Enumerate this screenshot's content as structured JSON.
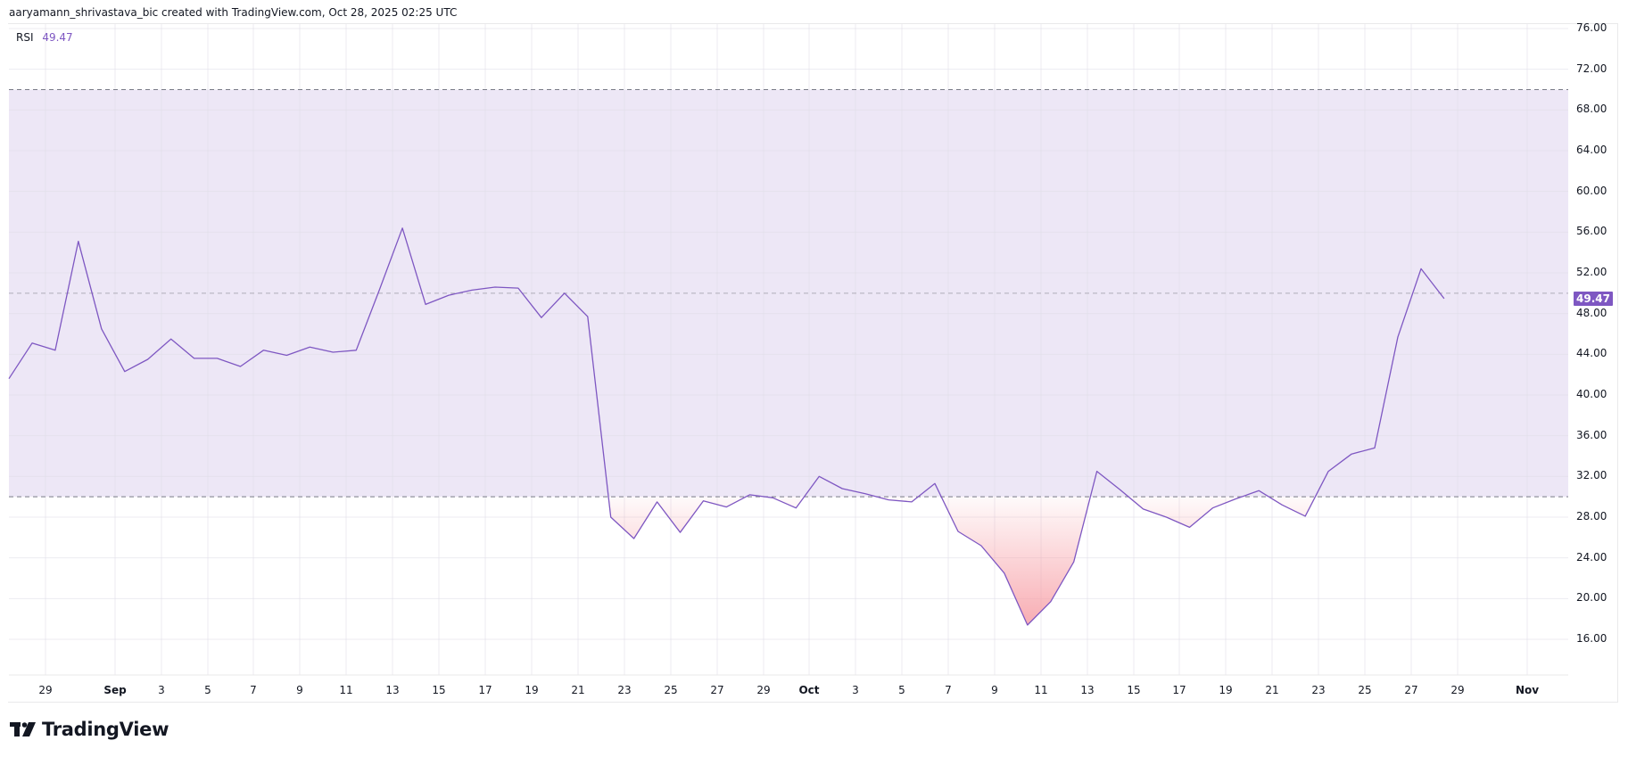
{
  "header": {
    "attribution": "aaryamann_shrivastava_bic created with TradingView.com, Oct 28, 2025 02:25 UTC"
  },
  "legend": {
    "name": "RSI",
    "value": "49.47"
  },
  "price_tag": {
    "value": "49.47",
    "color": "#7e57c2"
  },
  "brand": {
    "name": "TradingView"
  },
  "colors": {
    "line": "#7e57c2",
    "band": "#ede7f6",
    "oversold_fill": "#f7a1a8",
    "grid": "#f0f0f3"
  },
  "y_axis": {
    "labels": [
      "76.00",
      "72.00",
      "68.00",
      "64.00",
      "60.00",
      "56.00",
      "52.00",
      "48.00",
      "44.00",
      "40.00",
      "36.00",
      "32.00",
      "28.00",
      "24.00",
      "20.00",
      "16.00"
    ]
  },
  "x_axis": {
    "labels": [
      "29",
      "Sep",
      "3",
      "5",
      "7",
      "9",
      "11",
      "13",
      "15",
      "17",
      "19",
      "21",
      "23",
      "25",
      "27",
      "29",
      "Oct",
      "3",
      "5",
      "7",
      "9",
      "11",
      "13",
      "15",
      "17",
      "19",
      "21",
      "23",
      "25",
      "27",
      "29",
      "Nov"
    ]
  },
  "chart_data": {
    "type": "line",
    "title": "RSI",
    "xlabel": "",
    "ylabel": "",
    "ylim": [
      12,
      77
    ],
    "grid": true,
    "legend_position": "top-left",
    "bands": {
      "upper": 70,
      "middle": 50,
      "lower": 30
    },
    "current_value": 49.47,
    "x": [
      "Aug 27",
      "Aug 28",
      "Aug 29",
      "Aug 30",
      "Aug 31",
      "Sep 1",
      "Sep 2",
      "Sep 3",
      "Sep 4",
      "Sep 5",
      "Sep 6",
      "Sep 7",
      "Sep 8",
      "Sep 9",
      "Sep 10",
      "Sep 11",
      "Sep 12",
      "Sep 13",
      "Sep 14",
      "Sep 15",
      "Sep 16",
      "Sep 17",
      "Sep 18",
      "Sep 19",
      "Sep 20",
      "Sep 21",
      "Sep 22",
      "Sep 23",
      "Sep 24",
      "Sep 25",
      "Sep 26",
      "Sep 27",
      "Sep 28",
      "Sep 29",
      "Sep 30",
      "Oct 1",
      "Oct 2",
      "Oct 3",
      "Oct 4",
      "Oct 5",
      "Oct 6",
      "Oct 7",
      "Oct 8",
      "Oct 9",
      "Oct 10",
      "Oct 11",
      "Oct 12",
      "Oct 13",
      "Oct 14",
      "Oct 15",
      "Oct 16",
      "Oct 17",
      "Oct 18",
      "Oct 19",
      "Oct 20",
      "Oct 21",
      "Oct 22",
      "Oct 23",
      "Oct 24",
      "Oct 25",
      "Oct 26",
      "Oct 27",
      "Oct 28"
    ],
    "series": [
      {
        "name": "RSI",
        "values": [
          41.6,
          45.1,
          44.4,
          55.1,
          46.5,
          42.3,
          43.5,
          45.5,
          43.6,
          43.6,
          42.8,
          44.4,
          43.9,
          44.7,
          44.2,
          44.4,
          50.3,
          56.4,
          48.9,
          49.8,
          50.3,
          50.6,
          50.5,
          47.6,
          50.0,
          47.7,
          28.0,
          25.9,
          29.5,
          26.5,
          29.6,
          29.0,
          30.2,
          29.9,
          28.9,
          32.0,
          30.8,
          30.3,
          29.7,
          29.5,
          31.3,
          26.6,
          25.2,
          22.5,
          17.4,
          19.7,
          23.6,
          32.5,
          30.7,
          28.8,
          28.0,
          27.0,
          28.9,
          29.8,
          30.6,
          29.2,
          28.1,
          32.5,
          34.2,
          34.8,
          45.7,
          52.4,
          49.47
        ]
      }
    ]
  }
}
